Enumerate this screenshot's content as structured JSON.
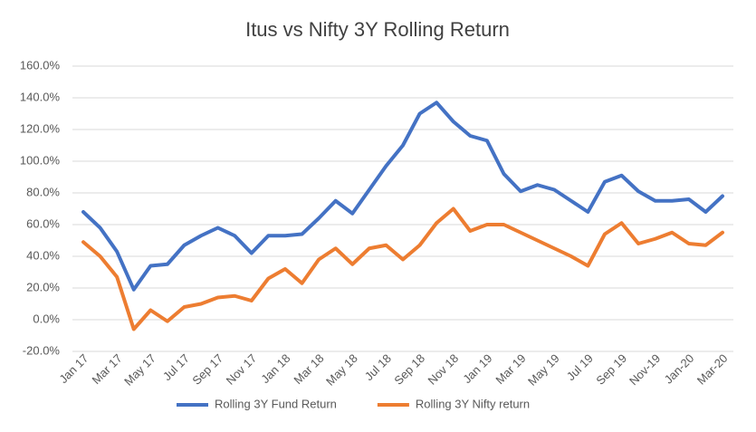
{
  "chart_data": {
    "type": "line",
    "title": "Itus vs Nifty 3Y Rolling Return",
    "categories": [
      "Jan 17",
      null,
      "Mar 17",
      null,
      "May 17",
      null,
      "Jul 17",
      null,
      "Sep 17",
      null,
      "Nov 17",
      null,
      "Jan 18",
      null,
      "Mar 18",
      null,
      "May 18",
      null,
      "Jul 18",
      null,
      "Sep 18",
      null,
      "Nov 18",
      null,
      "Jan 19",
      null,
      "Mar 19",
      null,
      "May 19",
      null,
      "Jul 19",
      null,
      "Sep 19",
      null,
      "Nov-19",
      null,
      "Jan-20",
      null,
      "Mar-20"
    ],
    "series": [
      {
        "name": "Rolling 3Y Fund Return",
        "color": "#4472c4",
        "values": [
          68,
          58,
          43,
          19,
          34,
          35,
          47,
          53,
          58,
          53,
          42,
          53,
          53,
          54,
          64,
          75,
          67,
          82,
          97,
          110,
          130,
          137,
          125,
          116,
          113,
          92,
          81,
          85,
          82,
          75,
          68,
          87,
          91,
          81,
          75,
          75,
          76,
          68,
          78
        ]
      },
      {
        "name": "Rolling 3Y Nifty return",
        "color": "#ed7d31",
        "values": [
          49,
          40,
          27,
          -6,
          6,
          -1,
          8,
          10,
          14,
          15,
          12,
          26,
          32,
          23,
          38,
          45,
          35,
          45,
          47,
          38,
          47,
          61,
          70,
          56,
          60,
          60,
          55,
          50,
          45,
          40,
          34,
          54,
          61,
          48,
          51,
          55,
          48,
          47,
          55
        ]
      }
    ],
    "ylim": [
      -20,
      160
    ],
    "yticks": [
      {
        "value": -20,
        "label": "-20.0%"
      },
      {
        "value": 0,
        "label": "0.0%"
      },
      {
        "value": 20,
        "label": "20.0%"
      },
      {
        "value": 40,
        "label": "40.0%"
      },
      {
        "value": 60,
        "label": "60.0%"
      },
      {
        "value": 80,
        "label": "80.0%"
      },
      {
        "value": 100,
        "label": "100.0%"
      },
      {
        "value": 120,
        "label": "120.0%"
      },
      {
        "value": 140,
        "label": "140.0%"
      },
      {
        "value": 160,
        "label": "160.0%"
      }
    ],
    "grid": true,
    "legend": "bottom"
  }
}
